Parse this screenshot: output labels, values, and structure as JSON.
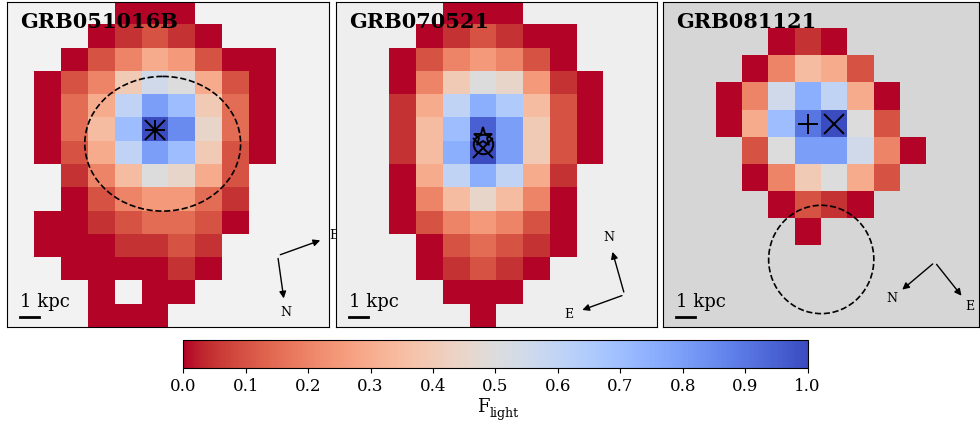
{
  "chart_data": {
    "type": "heatmap",
    "tick_labels": false,
    "panels": [
      {
        "title": "GRB051016B",
        "scale_label": "1 kpc",
        "compass": [
          "N",
          "E"
        ],
        "markers": [
          {
            "x": 5,
            "y": 5,
            "marker": "plus"
          },
          {
            "x": 5,
            "y": 5,
            "marker": "x"
          }
        ],
        "circle": {
          "x": 5.3,
          "y": 5.6,
          "r": 2.9
        },
        "cells": [
          [
            null,
            null,
            null,
            null,
            0.0,
            0.0,
            0.0,
            null,
            null,
            null,
            null,
            null
          ],
          [
            null,
            null,
            null,
            0.0,
            0.05,
            0.1,
            0.05,
            0.0,
            null,
            null,
            null,
            null
          ],
          [
            null,
            null,
            0.0,
            0.1,
            0.2,
            0.3,
            0.25,
            0.1,
            0.0,
            0.0,
            null,
            null
          ],
          [
            null,
            0.0,
            0.1,
            0.2,
            0.4,
            0.55,
            0.5,
            0.3,
            0.1,
            0.0,
            null,
            null
          ],
          [
            null,
            0.0,
            0.15,
            0.3,
            0.6,
            0.8,
            0.7,
            0.4,
            0.15,
            0.0,
            null,
            null
          ],
          [
            null,
            0.0,
            0.15,
            0.35,
            0.7,
            1.0,
            0.85,
            0.45,
            0.15,
            0.0,
            null,
            null
          ],
          [
            null,
            0.0,
            0.1,
            0.3,
            0.6,
            0.8,
            0.7,
            0.4,
            0.1,
            0.0,
            null,
            null
          ],
          [
            null,
            null,
            0.05,
            0.2,
            0.35,
            0.5,
            0.45,
            0.3,
            0.1,
            null,
            null,
            null
          ],
          [
            null,
            null,
            0.0,
            0.1,
            0.2,
            0.25,
            0.25,
            0.15,
            0.05,
            null,
            null,
            null
          ],
          [
            null,
            0.0,
            0.0,
            0.05,
            0.1,
            0.15,
            0.15,
            0.1,
            0.0,
            null,
            null,
            null
          ],
          [
            null,
            0.0,
            0.0,
            0.0,
            0.05,
            0.05,
            0.1,
            0.05,
            null,
            null,
            null,
            null
          ],
          [
            null,
            null,
            0.0,
            0.0,
            0.0,
            0.0,
            0.05,
            0.0,
            null,
            null,
            null,
            null
          ],
          [
            null,
            null,
            null,
            0.0,
            null,
            0.0,
            0.0,
            null,
            null,
            null,
            null,
            null
          ],
          [
            null,
            null,
            null,
            0.0,
            0.0,
            0.0,
            null,
            null,
            null,
            null,
            null,
            null
          ]
        ]
      },
      {
        "title": "GRB070521",
        "scale_label": "1 kpc",
        "compass": [
          "N",
          "E"
        ],
        "markers": [
          {
            "x": 5,
            "y": 5.3,
            "marker": "star"
          },
          {
            "x": 5,
            "y": 5.6,
            "marker": "circle"
          },
          {
            "x": 5,
            "y": 5.8,
            "marker": "x"
          }
        ],
        "cells": [
          [
            null,
            null,
            null,
            null,
            0.0,
            0.0,
            0.0,
            null,
            null,
            null,
            null,
            null
          ],
          [
            null,
            null,
            null,
            0.0,
            0.05,
            0.1,
            0.05,
            0.0,
            0.0,
            null,
            null,
            null
          ],
          [
            null,
            null,
            0.0,
            0.1,
            0.2,
            0.25,
            0.2,
            0.1,
            0.0,
            null,
            null,
            null
          ],
          [
            null,
            null,
            0.0,
            0.2,
            0.4,
            0.5,
            0.45,
            0.25,
            0.05,
            0.0,
            null,
            null
          ],
          [
            null,
            null,
            0.05,
            0.3,
            0.6,
            0.75,
            0.65,
            0.35,
            0.1,
            0.0,
            null,
            null
          ],
          [
            null,
            null,
            0.05,
            0.35,
            0.7,
            0.95,
            0.8,
            0.4,
            0.1,
            0.0,
            null,
            null
          ],
          [
            null,
            null,
            0.05,
            0.35,
            0.75,
            1.0,
            0.8,
            0.4,
            0.1,
            0.0,
            null,
            null
          ],
          [
            null,
            null,
            0.0,
            0.3,
            0.6,
            0.75,
            0.6,
            0.3,
            0.05,
            null,
            null,
            null
          ],
          [
            null,
            null,
            0.0,
            0.2,
            0.35,
            0.45,
            0.35,
            0.2,
            0.0,
            null,
            null,
            null
          ],
          [
            null,
            null,
            0.0,
            0.1,
            0.2,
            0.25,
            0.2,
            0.1,
            0.0,
            null,
            null,
            null
          ],
          [
            null,
            null,
            null,
            0.0,
            0.1,
            0.15,
            0.1,
            0.05,
            0.0,
            null,
            null,
            null
          ],
          [
            null,
            null,
            null,
            0.0,
            0.05,
            0.1,
            0.05,
            0.0,
            null,
            null,
            null,
            null
          ],
          [
            null,
            null,
            null,
            null,
            0.0,
            0.0,
            0.0,
            null,
            null,
            null,
            null,
            null
          ],
          [
            null,
            null,
            null,
            null,
            null,
            0.0,
            null,
            null,
            null,
            null,
            null,
            null
          ]
        ]
      },
      {
        "title": "GRB081121",
        "scale_label": "1 kpc",
        "compass": [
          "N",
          "E"
        ],
        "markers": [
          {
            "x": 5,
            "y": 4,
            "marker": "plus"
          },
          {
            "x": 6,
            "y": 4,
            "marker": "x"
          }
        ],
        "circle": {
          "x": 5.5,
          "y": 9.0,
          "r": 2.0
        },
        "cells": [
          [
            null,
            null,
            null,
            null,
            null,
            null,
            null,
            null,
            null,
            null,
            null,
            null
          ],
          [
            null,
            null,
            null,
            null,
            0.0,
            0.05,
            0.0,
            null,
            null,
            null,
            null,
            null
          ],
          [
            null,
            null,
            null,
            0.0,
            0.2,
            0.35,
            0.3,
            0.1,
            null,
            null,
            null,
            null
          ],
          [
            null,
            null,
            0.0,
            0.2,
            0.55,
            0.75,
            0.6,
            0.3,
            0.0,
            null,
            null,
            null
          ],
          [
            null,
            null,
            0.0,
            0.3,
            0.7,
            0.9,
            1.0,
            0.5,
            0.1,
            null,
            null,
            null
          ],
          [
            null,
            null,
            null,
            0.1,
            0.5,
            0.8,
            0.8,
            0.55,
            0.2,
            0.0,
            null,
            null
          ],
          [
            null,
            null,
            null,
            0.0,
            0.2,
            0.4,
            0.5,
            0.3,
            0.1,
            null,
            null,
            null
          ],
          [
            null,
            null,
            null,
            null,
            0.0,
            0.1,
            0.05,
            0.0,
            null,
            null,
            null,
            null
          ],
          [
            null,
            null,
            null,
            null,
            null,
            0.0,
            null,
            null,
            null,
            null,
            null,
            null
          ],
          [
            null,
            null,
            null,
            null,
            null,
            null,
            null,
            null,
            null,
            null,
            null,
            null
          ],
          [
            null,
            null,
            null,
            null,
            null,
            null,
            null,
            null,
            null,
            null,
            null,
            null
          ],
          [
            null,
            null,
            null,
            null,
            null,
            null,
            null,
            null,
            null,
            null,
            null,
            null
          ]
        ]
      }
    ],
    "colorbar": {
      "label": {
        "main": "F",
        "subscript": "light"
      },
      "range": [
        0.0,
        1.0
      ],
      "ticks": [
        {
          "value": 0.0,
          "label": "0.0"
        },
        {
          "value": 0.1,
          "label": "0.1"
        },
        {
          "value": 0.2,
          "label": "0.2"
        },
        {
          "value": 0.3,
          "label": "0.3"
        },
        {
          "value": 0.4,
          "label": "0.4"
        },
        {
          "value": 0.5,
          "label": "0.5"
        },
        {
          "value": 0.6,
          "label": "0.6"
        },
        {
          "value": 0.7,
          "label": "0.7"
        },
        {
          "value": 0.8,
          "label": "0.8"
        },
        {
          "value": 0.9,
          "label": "0.9"
        },
        {
          "value": 1.0,
          "label": "1.0"
        }
      ]
    }
  }
}
